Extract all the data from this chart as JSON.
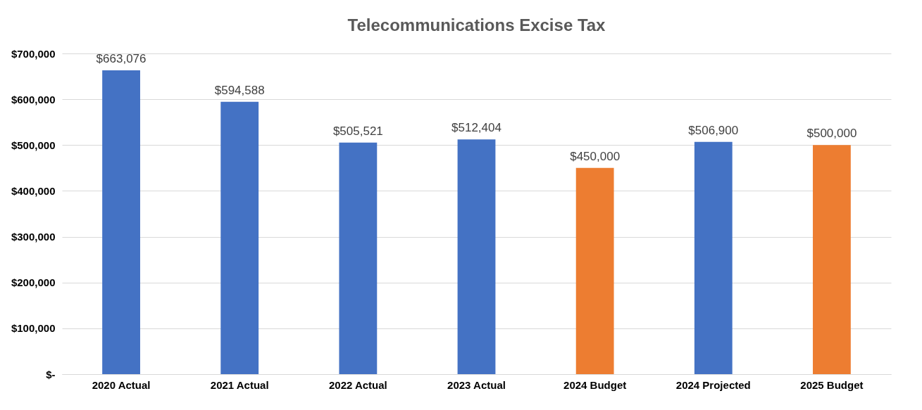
{
  "chart_data": {
    "type": "bar",
    "title": "Telecommunications Excise Tax",
    "categories": [
      "2020 Actual",
      "2021 Actual",
      "2022 Actual",
      "2023 Actual",
      "2024 Budget",
      "2024 Projected",
      "2025 Budget"
    ],
    "values": [
      663076,
      594588,
      505521,
      512404,
      450000,
      506900,
      500000
    ],
    "colors": [
      "#4472c4",
      "#4472c4",
      "#4472c4",
      "#4472c4",
      "#ed7d31",
      "#4472c4",
      "#ed7d31"
    ],
    "value_labels": [
      "$663,076",
      "$594,588",
      "$505,521",
      "$512,404",
      "$450,000",
      "$506,900",
      "$500,000"
    ],
    "ylim": [
      0,
      700000
    ],
    "yticks": [
      {
        "value": 0,
        "label": "$-"
      },
      {
        "value": 100000,
        "label": "$100,000"
      },
      {
        "value": 200000,
        "label": "$200,000"
      },
      {
        "value": 300000,
        "label": "$300,000"
      },
      {
        "value": 400000,
        "label": "$400,000"
      },
      {
        "value": 500000,
        "label": "$500,000"
      },
      {
        "value": 600000,
        "label": "$600,000"
      },
      {
        "value": 700000,
        "label": "$700,000"
      }
    ],
    "grid": "y"
  }
}
